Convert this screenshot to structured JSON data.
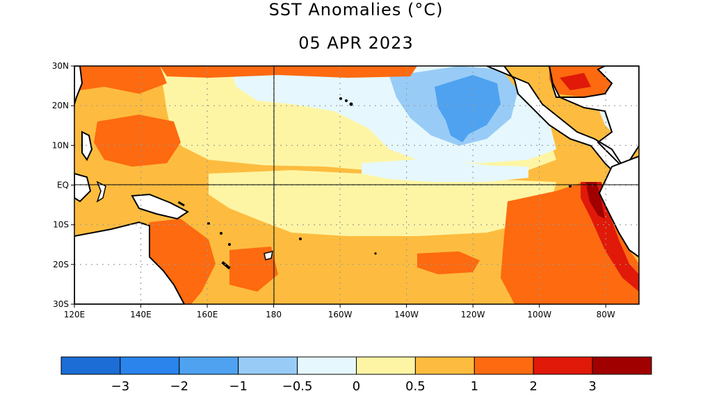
{
  "title": "SST Anomalies (°C)",
  "date": "05 APR 2023",
  "map": {
    "lon_range": [
      120,
      290
    ],
    "lat_range": [
      -30,
      30
    ],
    "x_ticks": [
      {
        "lon": 120,
        "label": "120E"
      },
      {
        "lon": 140,
        "label": "140E"
      },
      {
        "lon": 160,
        "label": "160E"
      },
      {
        "lon": 180,
        "label": "180"
      },
      {
        "lon": 200,
        "label": "160W"
      },
      {
        "lon": 220,
        "label": "140W"
      },
      {
        "lon": 240,
        "label": "120W"
      },
      {
        "lon": 260,
        "label": "100W"
      },
      {
        "lon": 280,
        "label": "80W"
      }
    ],
    "y_ticks": [
      {
        "lat": 30,
        "label": "30N"
      },
      {
        "lat": 20,
        "label": "20N"
      },
      {
        "lat": 10,
        "label": "10N"
      },
      {
        "lat": 0,
        "label": "EQ"
      },
      {
        "lat": -10,
        "label": "10S"
      },
      {
        "lat": -20,
        "label": "20S"
      },
      {
        "lat": -30,
        "label": "30S"
      }
    ],
    "grid": "dotted",
    "reference_lines": {
      "equator": 0,
      "dateline": 180
    }
  },
  "colorbar": {
    "colors": [
      "#1c6dd6",
      "#2a84ec",
      "#4ea2f0",
      "#98ccf7",
      "#e6f8fd",
      "#fef5a4",
      "#fdbc3f",
      "#fd6a10",
      "#e01909",
      "#a00000"
    ],
    "tick_labels": [
      "−3",
      "−2",
      "−1",
      "−0.5",
      "0",
      "0.5",
      "1",
      "2",
      "3"
    ]
  },
  "regions": [
    {
      "name": "west-pacific-warm-pool",
      "level": "1 to 2",
      "color": "#fd6a10"
    },
    {
      "name": "central-equatorial-pacific",
      "level": "0 to 0.5",
      "color": "#fef5a4"
    },
    {
      "name": "north-central-pacific",
      "level": "-1 to -0.5",
      "color": "#98ccf7"
    },
    {
      "name": "peru-coast",
      "level": "2 to 3+",
      "color": "#e01909"
    },
    {
      "name": "southeast-pacific",
      "level": "1 to 2",
      "color": "#fd6a10"
    }
  ]
}
